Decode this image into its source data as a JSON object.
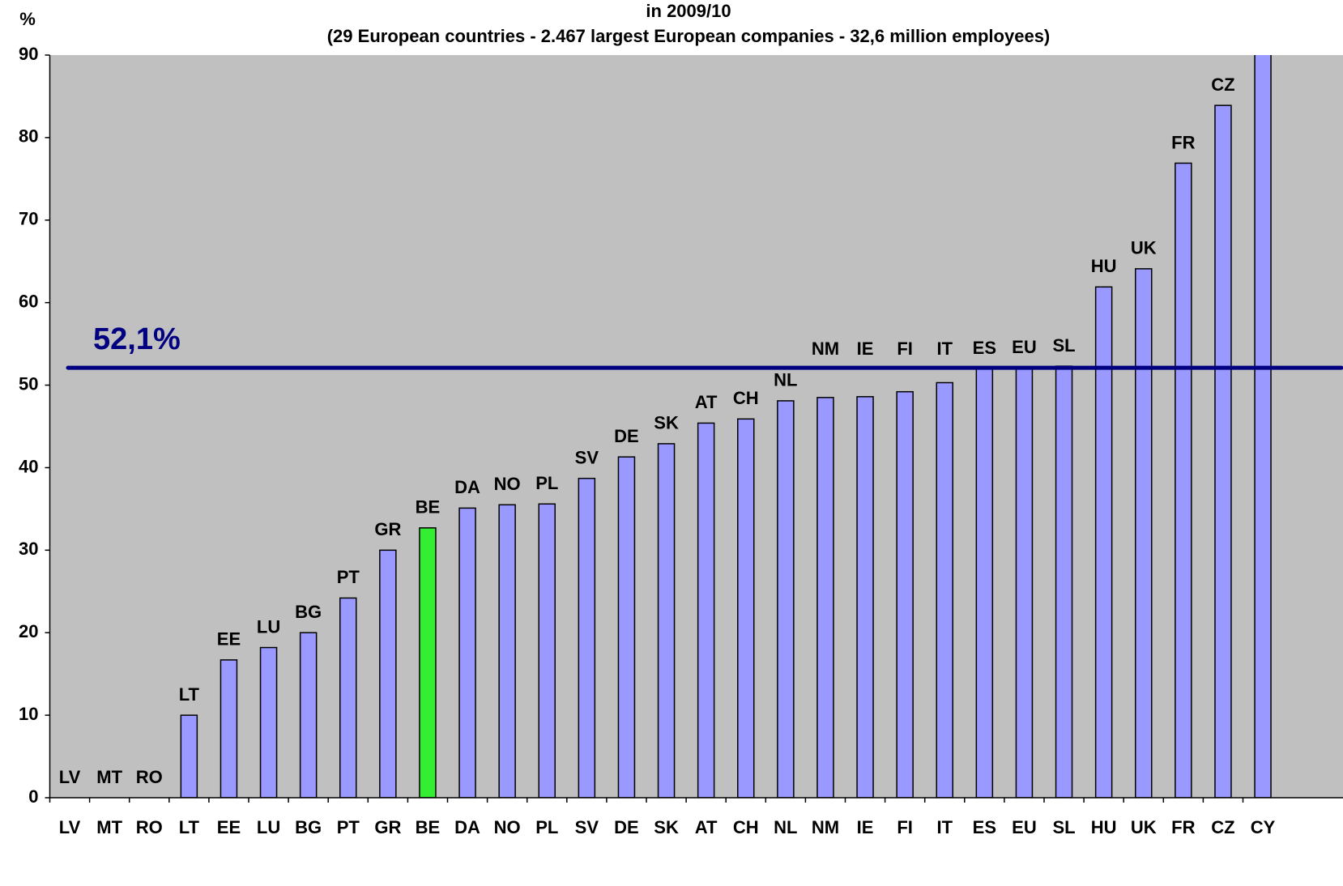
{
  "chart_data": {
    "type": "bar",
    "title": "in 2009/10",
    "subtitle": "(29 European countries - 2.467 largest European companies - 32,6 million employees)",
    "y_label": "%",
    "categories": [
      "LV",
      "MT",
      "RO",
      "LT",
      "EE",
      "LU",
      "BG",
      "PT",
      "GR",
      "BE",
      "DA",
      "NO",
      "PL",
      "SV",
      "DE",
      "SK",
      "AT",
      "CH",
      "NL",
      "NM",
      "IE",
      "FI",
      "IT",
      "ES",
      "EU",
      "SL",
      "HU",
      "UK",
      "FR",
      "CZ",
      "CY"
    ],
    "values": [
      0,
      0,
      0,
      10,
      16.7,
      18.2,
      20,
      24.2,
      30,
      32.7,
      35.1,
      35.5,
      35.6,
      38.7,
      41.3,
      42.9,
      45.4,
      45.9,
      48.1,
      48.5,
      48.6,
      49.2,
      50.3,
      52,
      52.1,
      52.3,
      61.9,
      64.1,
      76.9,
      83.9,
      95
    ],
    "colors": [
      "#9999ff",
      "#9999ff",
      "#9999ff",
      "#9999ff",
      "#9999ff",
      "#9999ff",
      "#9999ff",
      "#9999ff",
      "#9999ff",
      "#33ee33",
      "#9999ff",
      "#9999ff",
      "#9999ff",
      "#9999ff",
      "#9999ff",
      "#9999ff",
      "#9999ff",
      "#9999ff",
      "#9999ff",
      "#9999ff",
      "#9999ff",
      "#9999ff",
      "#9999ff",
      "#9999ff",
      "#9999ff",
      "#9999ff",
      "#9999ff",
      "#9999ff",
      "#9999ff",
      "#9999ff",
      "#9999ff"
    ],
    "reference_line": {
      "value": 52.1,
      "label": "52,1%",
      "color": "#000080"
    },
    "ylim": [
      0,
      90
    ],
    "yticks": [
      0,
      10,
      20,
      30,
      40,
      50,
      60,
      70,
      80,
      90
    ],
    "plot_background": "#c0c0c0"
  }
}
